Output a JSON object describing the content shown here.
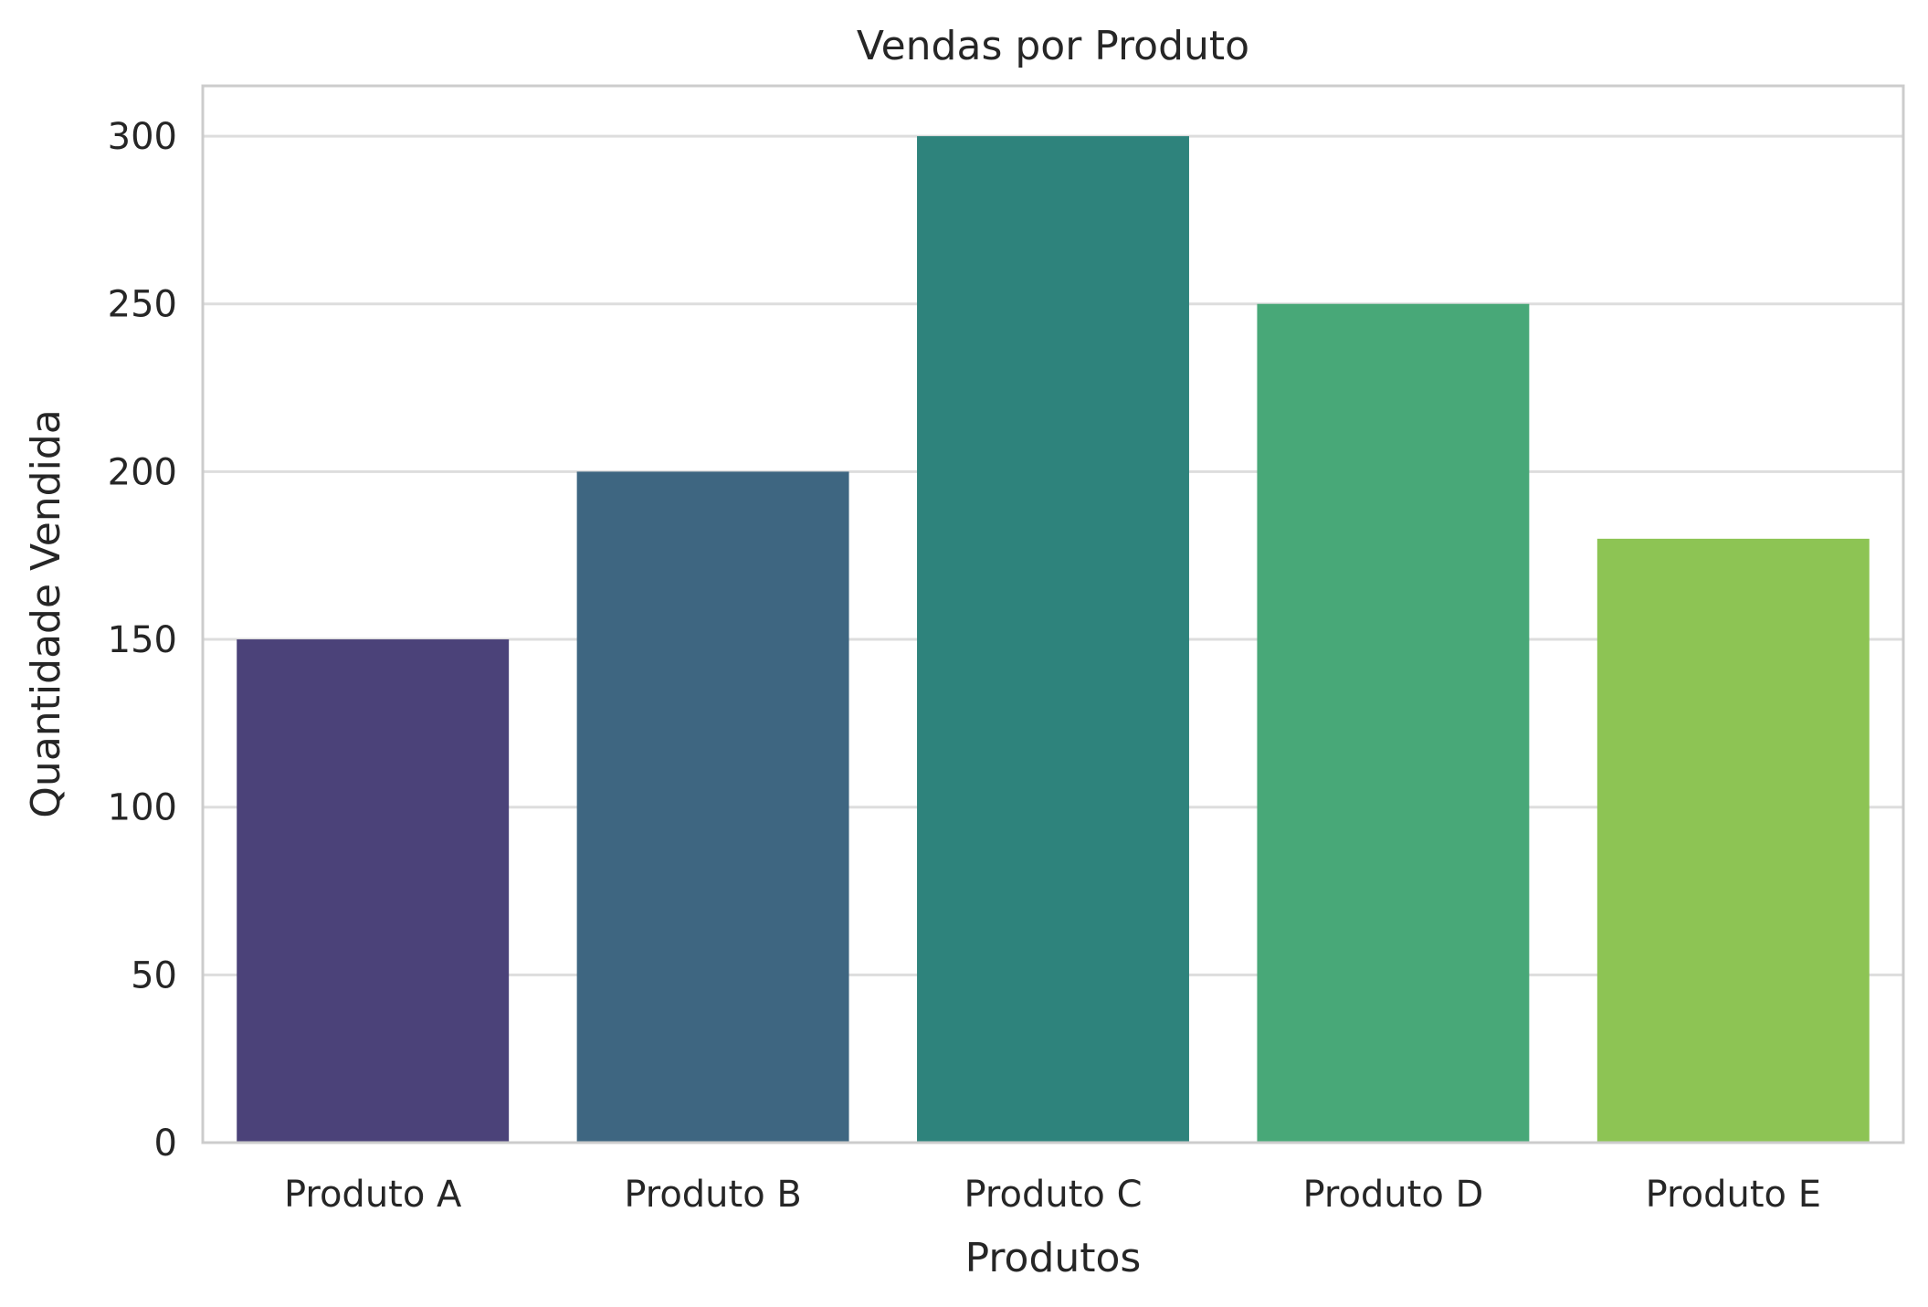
{
  "chart_data": {
    "type": "bar",
    "title": "Vendas por Produto",
    "xlabel": "Produtos",
    "ylabel": "Quantidade Vendida",
    "categories": [
      "Produto A",
      "Produto B",
      "Produto C",
      "Produto D",
      "Produto E"
    ],
    "values": [
      150,
      200,
      300,
      250,
      180
    ],
    "colors": [
      "#4b4279",
      "#3e6681",
      "#2e837c",
      "#48a878",
      "#8dc454"
    ],
    "ylim": [
      0,
      315
    ],
    "yticks": [
      0,
      50,
      100,
      150,
      200,
      250,
      300
    ],
    "grid": "horizontal",
    "grid_color": "#dddddd",
    "frame_color": "#cccccc",
    "background": "#ffffff"
  }
}
